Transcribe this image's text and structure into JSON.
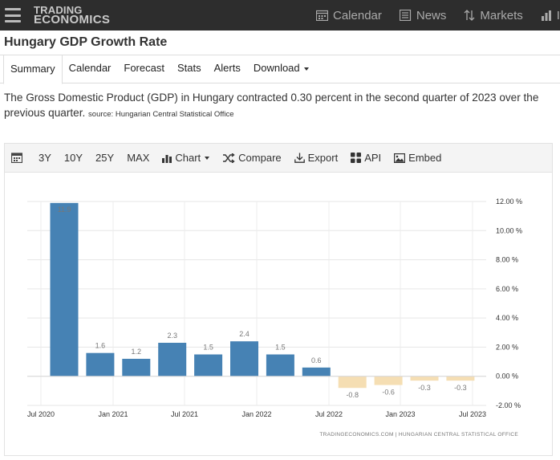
{
  "navbar": {
    "logo_line1": "TRADING",
    "logo_line2": "ECONOMICS",
    "items": [
      {
        "label": "Calendar",
        "icon": "calendar-icon"
      },
      {
        "label": "News",
        "icon": "news-icon"
      },
      {
        "label": "Markets",
        "icon": "markets-icon"
      },
      {
        "label": "In",
        "icon": "indicators-icon"
      }
    ]
  },
  "page": {
    "title": "Hungary GDP Growth Rate"
  },
  "tabs": [
    {
      "label": "Summary"
    },
    {
      "label": "Calendar"
    },
    {
      "label": "Forecast"
    },
    {
      "label": "Stats"
    },
    {
      "label": "Alerts"
    },
    {
      "label": "Download"
    }
  ],
  "description": {
    "text": "The Gross Domestic Product (GDP) in Hungary contracted 0.30 percent in the second quarter of 2023 over the previous quarter.",
    "source": "source: Hungarian Central Statistical Office"
  },
  "toolbar": {
    "ranges": [
      "3Y",
      "10Y",
      "25Y",
      "MAX"
    ],
    "chart_label": "Chart",
    "compare_label": "Compare",
    "export_label": "Export",
    "api_label": "API",
    "embed_label": "Embed"
  },
  "chart_data": {
    "type": "bar",
    "title": "",
    "xlabel": "",
    "ylabel": "",
    "categories": [
      "Q3 2020",
      "Q4 2020",
      "Q1 2021",
      "Q2 2021",
      "Q3 2021",
      "Q4 2021",
      "Q1 2022",
      "Q2 2022",
      "Q3 2022",
      "Q4 2022",
      "Q1 2023",
      "Q2 2023"
    ],
    "values": [
      11.9,
      1.6,
      1.2,
      2.3,
      1.5,
      2.4,
      1.5,
      0.6,
      -0.8,
      -0.6,
      -0.3,
      -0.3
    ],
    "data_labels": [
      "11.9",
      "1.6",
      "1.2",
      "2.3",
      "1.5",
      "2.4",
      "1.5",
      "0.6",
      "-0.8",
      "-0.6",
      "-0.3",
      "-0.3"
    ],
    "x_tick_labels": [
      "Jul 2020",
      "Jan 2021",
      "Jul 2021",
      "Jan 2022",
      "Jul 2022",
      "Jan 2023",
      "Jul 2023"
    ],
    "y_tick_labels": [
      "12.00 %",
      "10.00 %",
      "8.00 %",
      "6.00 %",
      "4.00 %",
      "2.00 %",
      "0.00 %",
      "-2.00 %"
    ],
    "y_ticks": [
      12,
      10,
      8,
      6,
      4,
      2,
      0,
      -2
    ],
    "ylim": [
      -2,
      12
    ],
    "grid": true,
    "y_axis_side": "right",
    "positive_color": "#4682b4",
    "negative_color": "#f5deb3",
    "credit": "TRADINGECONOMICS.COM  |  HUNGARIAN CENTRAL STATISTICAL OFFICE"
  }
}
